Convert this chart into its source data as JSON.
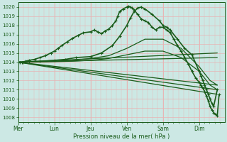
{
  "xlabel": "Pression niveau de la mer( hPa )",
  "bg_color": "#cce8e4",
  "grid_color": "#e8b4b4",
  "line_color": "#1a5c1a",
  "ylim": [
    1007.5,
    1020.5
  ],
  "xlim": [
    0,
    5.7
  ],
  "yticks": [
    1008,
    1009,
    1010,
    1011,
    1012,
    1013,
    1014,
    1015,
    1016,
    1017,
    1018,
    1019,
    1020
  ],
  "day_labels": [
    "Mer",
    "Lun",
    "Jeu",
    "Ven",
    "Sam",
    "Dim"
  ],
  "day_positions": [
    0.0,
    1.0,
    2.0,
    3.0,
    4.0,
    5.0
  ],
  "vgrid_minor_step": 0.142857,
  "series": [
    {
      "x": [
        0.0,
        0.05,
        0.12,
        0.2,
        0.3,
        0.45,
        0.6,
        0.75,
        0.9,
        1.0,
        1.1,
        1.2,
        1.35,
        1.5,
        1.65,
        1.8,
        2.0,
        2.1,
        2.2,
        2.3,
        2.4,
        2.5,
        2.6,
        2.7,
        2.75,
        2.8,
        2.9,
        3.0,
        3.05,
        3.1,
        3.15,
        3.2,
        3.3,
        3.4,
        3.5,
        3.6,
        3.7,
        3.8,
        3.9,
        4.0,
        4.1,
        4.2,
        4.3,
        4.4,
        4.5,
        4.6,
        4.7,
        4.8,
        4.9,
        5.0,
        5.05,
        5.1,
        5.15,
        5.2,
        5.25,
        5.3,
        5.35,
        5.4,
        5.45,
        5.5,
        5.55
      ],
      "y": [
        1014.0,
        1014.0,
        1014.0,
        1014.1,
        1014.2,
        1014.3,
        1014.5,
        1014.7,
        1015.0,
        1015.2,
        1015.5,
        1015.8,
        1016.2,
        1016.6,
        1016.9,
        1017.2,
        1017.3,
        1017.5,
        1017.3,
        1017.1,
        1017.4,
        1017.6,
        1018.0,
        1018.5,
        1019.0,
        1019.5,
        1019.8,
        1020.0,
        1020.1,
        1020.0,
        1019.9,
        1019.7,
        1019.2,
        1018.7,
        1018.5,
        1018.3,
        1017.8,
        1017.5,
        1017.8,
        1017.8,
        1017.5,
        1017.2,
        1016.5,
        1015.8,
        1015.2,
        1014.5,
        1013.8,
        1013.0,
        1012.3,
        1011.8,
        1011.5,
        1011.2,
        1010.8,
        1010.3,
        1009.8,
        1009.2,
        1008.8,
        1008.5,
        1008.3,
        1008.2,
        1010.5
      ],
      "marker": "+",
      "markersize": 3,
      "lw": 1.2,
      "alpha": 1.0
    },
    {
      "x": [
        0.0,
        0.1,
        0.3,
        0.6,
        1.0,
        1.3,
        1.6,
        2.0,
        2.3,
        2.6,
        2.8,
        3.0,
        3.1,
        3.2,
        3.3,
        3.4,
        3.5,
        3.7,
        3.9,
        4.0,
        4.1,
        4.2,
        4.4,
        4.6,
        4.8,
        5.0,
        5.05,
        5.1,
        5.15,
        5.2,
        5.25,
        5.3,
        5.35,
        5.4,
        5.5
      ],
      "y": [
        1014.0,
        1014.0,
        1014.05,
        1014.1,
        1014.2,
        1014.3,
        1014.5,
        1014.6,
        1015.0,
        1015.8,
        1016.8,
        1018.0,
        1018.8,
        1019.5,
        1019.9,
        1020.0,
        1019.8,
        1019.2,
        1018.5,
        1018.0,
        1017.8,
        1017.5,
        1016.5,
        1015.5,
        1014.8,
        1013.0,
        1012.5,
        1012.0,
        1011.5,
        1011.0,
        1010.5,
        1010.0,
        1009.5,
        1009.2,
        1011.0
      ],
      "marker": "+",
      "markersize": 3,
      "lw": 1.2,
      "alpha": 1.0
    },
    {
      "x": [
        0.0,
        5.5
      ],
      "y": [
        1014.0,
        1015.0
      ],
      "marker": null,
      "lw": 0.9,
      "alpha": 1.0
    },
    {
      "x": [
        0.0,
        5.5
      ],
      "y": [
        1014.0,
        1014.5
      ],
      "marker": null,
      "lw": 0.9,
      "alpha": 1.0
    },
    {
      "x": [
        0.0,
        5.5
      ],
      "y": [
        1014.0,
        1011.5
      ],
      "marker": null,
      "lw": 0.9,
      "alpha": 1.0
    },
    {
      "x": [
        0.0,
        5.5
      ],
      "y": [
        1014.0,
        1011.0
      ],
      "marker": null,
      "lw": 0.9,
      "alpha": 1.0
    },
    {
      "x": [
        0.0,
        5.5
      ],
      "y": [
        1014.0,
        1010.5
      ],
      "marker": null,
      "lw": 0.9,
      "alpha": 1.0
    },
    {
      "x": [
        0.0,
        0.5,
        1.0,
        1.5,
        2.0,
        2.5,
        3.0,
        3.5,
        4.0,
        4.5,
        5.0,
        5.3,
        5.5
      ],
      "y": [
        1014.0,
        1014.05,
        1014.1,
        1014.2,
        1014.4,
        1014.7,
        1015.5,
        1016.5,
        1016.5,
        1015.5,
        1013.5,
        1012.0,
        1011.5
      ],
      "marker": null,
      "lw": 0.9,
      "alpha": 1.0
    },
    {
      "x": [
        0.0,
        0.5,
        1.0,
        1.5,
        2.0,
        2.5,
        3.0,
        3.5,
        4.0,
        4.5,
        5.0,
        5.3,
        5.5
      ],
      "y": [
        1014.0,
        1014.03,
        1014.05,
        1014.1,
        1014.2,
        1014.4,
        1014.8,
        1015.2,
        1015.2,
        1014.5,
        1013.0,
        1011.5,
        1011.0
      ],
      "marker": null,
      "lw": 0.9,
      "alpha": 1.0
    }
  ]
}
